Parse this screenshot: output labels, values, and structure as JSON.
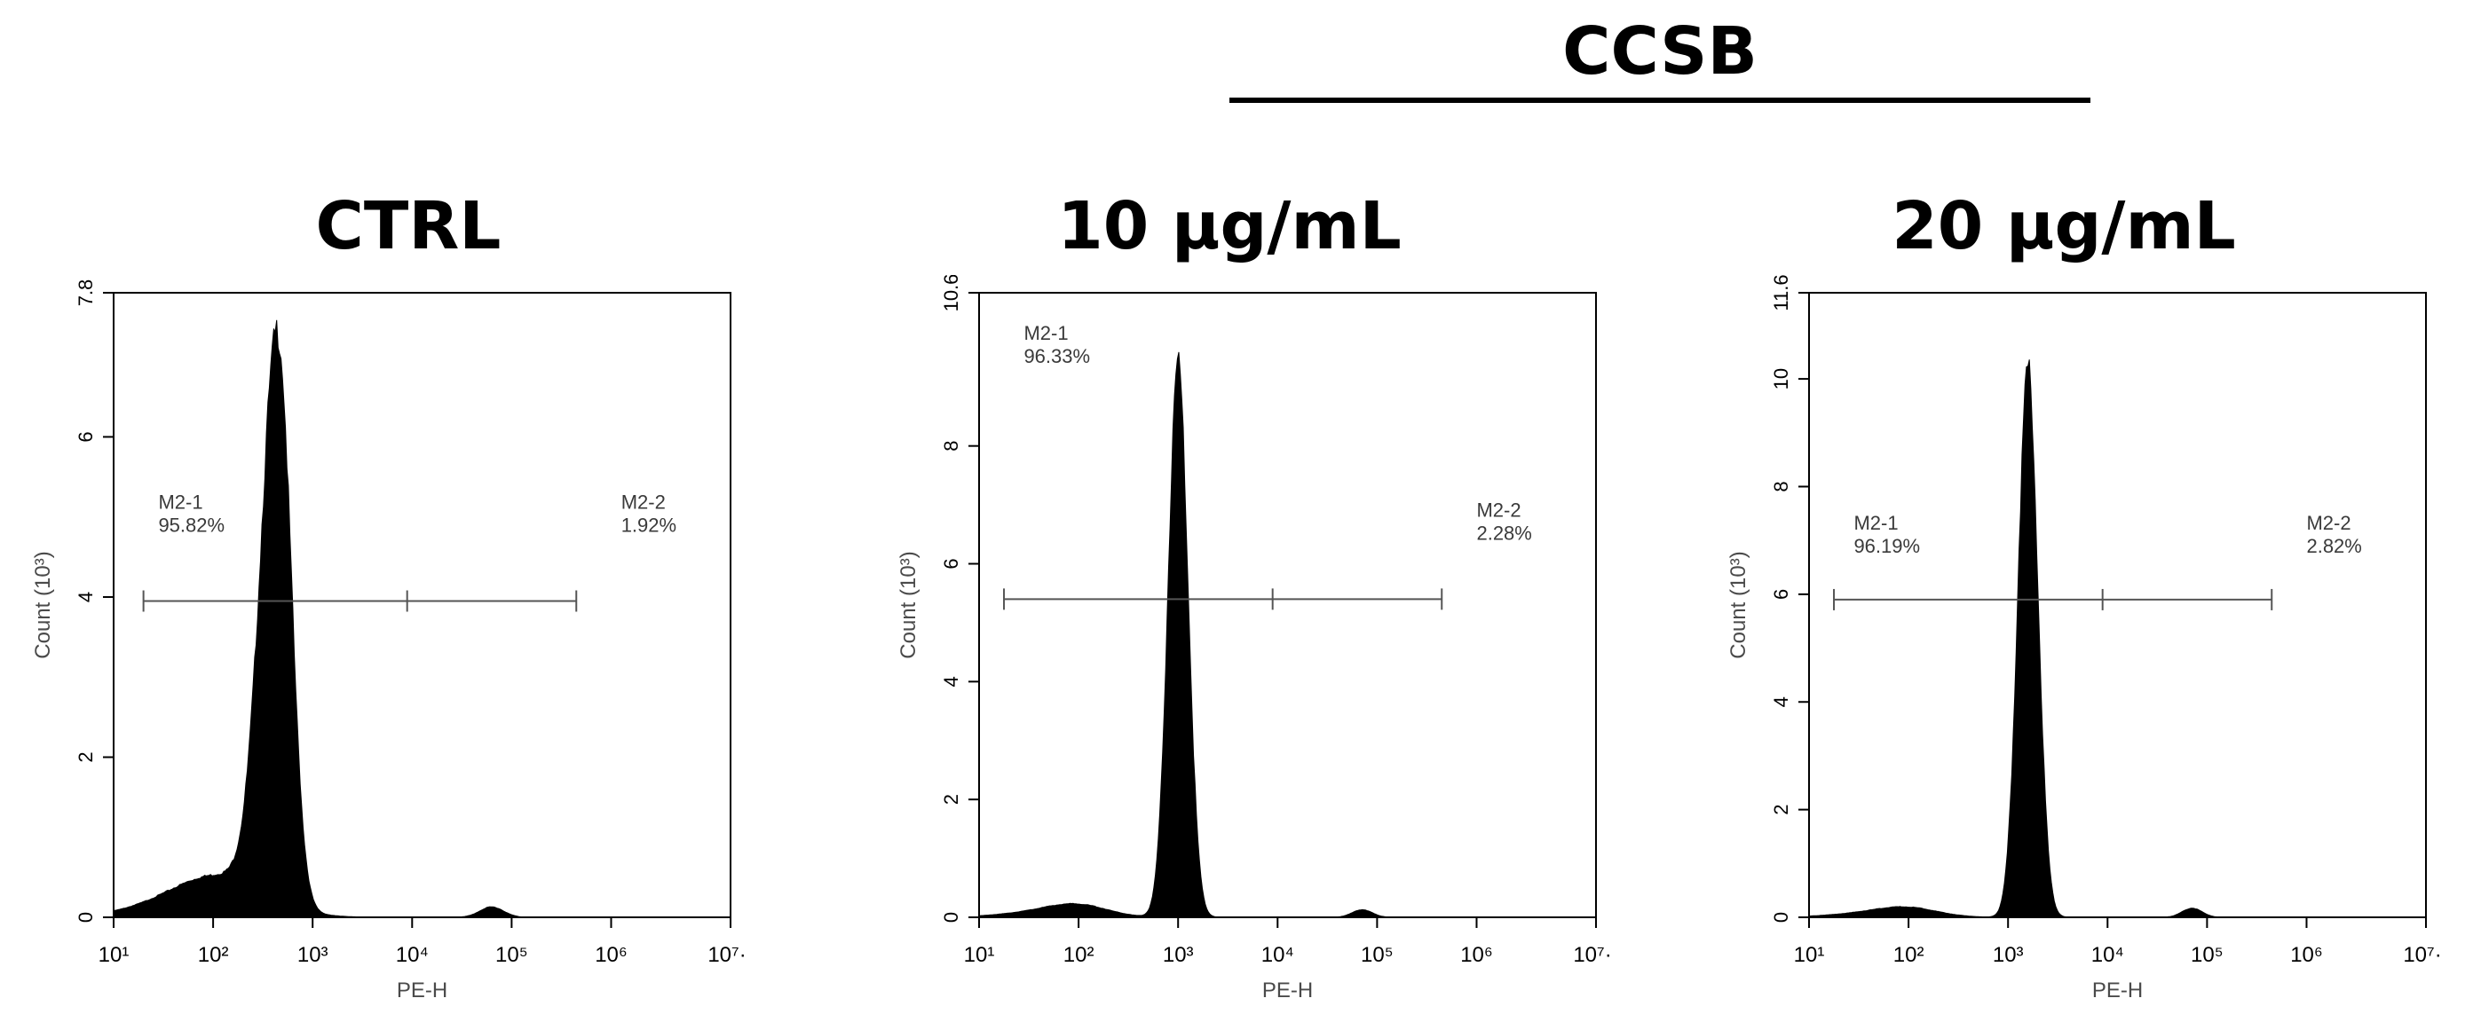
{
  "figure": {
    "group_label": "CCSB"
  },
  "chart_data": [
    {
      "type": "histogram",
      "title": "CTRL",
      "xlabel": "PE-H",
      "ylabel": "Count (10³)",
      "x_scale": "log",
      "xlim_exp": [
        1,
        7.2
      ],
      "x_ticks": [
        {
          "exp": 1,
          "label": "10¹"
        },
        {
          "exp": 2,
          "label": "10²"
        },
        {
          "exp": 3,
          "label": "10³"
        },
        {
          "exp": 4,
          "label": "10⁴"
        },
        {
          "exp": 5,
          "label": "10⁵"
        },
        {
          "exp": 6,
          "label": "10⁶"
        },
        {
          "exp": 7.2,
          "label": "10⁷·²"
        }
      ],
      "ylim": [
        0,
        7.8
      ],
      "y_ticks": [
        0,
        2,
        4,
        6,
        7.8
      ],
      "peak": {
        "center_exp": 2.65,
        "height": 7.1,
        "width_left": 0.17,
        "width_right": 0.13
      },
      "shoulder": {
        "center_exp": 2.1,
        "height": 0.45,
        "width": 0.45
      },
      "baseline_tail": {
        "center_exp": 1.6,
        "height": 0.12,
        "width": 0.5
      },
      "minor_peak": {
        "center_exp": 4.8,
        "height": 0.13,
        "width": 0.12
      },
      "markers": {
        "y": 3.95,
        "start_exp": 1.3,
        "mid_exp": 3.95,
        "end_exp": 5.65
      },
      "gates": [
        {
          "name": "M2-1",
          "percent": "95.82%",
          "label_exp": 1.45,
          "label_y": 5.1
        },
        {
          "name": "M2-2",
          "percent": "1.92%",
          "label_exp": 6.1,
          "label_y": 5.1
        }
      ]
    },
    {
      "type": "histogram",
      "title": "10 µg/mL",
      "xlabel": "PE-H",
      "ylabel": "Count (10³)",
      "x_scale": "log",
      "xlim_exp": [
        1,
        7.2
      ],
      "x_ticks": [
        {
          "exp": 1,
          "label": "10¹"
        },
        {
          "exp": 2,
          "label": "10²"
        },
        {
          "exp": 3,
          "label": "10³"
        },
        {
          "exp": 4,
          "label": "10⁴"
        },
        {
          "exp": 5,
          "label": "10⁵"
        },
        {
          "exp": 6,
          "label": "10⁶"
        },
        {
          "exp": 7.2,
          "label": "10⁷·²"
        }
      ],
      "ylim": [
        0,
        10.6
      ],
      "y_ticks": [
        0,
        2,
        4,
        6,
        8,
        10.6
      ],
      "peak": {
        "center_exp": 3.0,
        "height": 9.4,
        "width_left": 0.1,
        "width_right": 0.1
      },
      "shoulder": {
        "center_exp": 2.0,
        "height": 0.18,
        "width": 0.3
      },
      "baseline_tail": {
        "center_exp": 1.6,
        "height": 0.08,
        "width": 0.4
      },
      "minor_peak": {
        "center_exp": 4.85,
        "height": 0.13,
        "width": 0.1
      },
      "markers": {
        "y": 5.4,
        "start_exp": 1.25,
        "mid_exp": 3.95,
        "end_exp": 5.65
      },
      "gates": [
        {
          "name": "M2-1",
          "percent": "96.33%",
          "label_exp": 1.45,
          "label_y": 9.8
        },
        {
          "name": "M2-2",
          "percent": "2.28%",
          "label_exp": 6.0,
          "label_y": 6.8
        }
      ]
    },
    {
      "type": "histogram",
      "title": "20 µg/mL",
      "xlabel": "PE-H",
      "ylabel": "Count (10³)",
      "x_scale": "log",
      "xlim_exp": [
        1,
        7.2
      ],
      "x_ticks": [
        {
          "exp": 1,
          "label": "10¹"
        },
        {
          "exp": 2,
          "label": "10²"
        },
        {
          "exp": 3,
          "label": "10³"
        },
        {
          "exp": 4,
          "label": "10⁴"
        },
        {
          "exp": 5,
          "label": "10⁵"
        },
        {
          "exp": 6,
          "label": "10⁶"
        },
        {
          "exp": 7.2,
          "label": "10⁷·²"
        }
      ],
      "ylim": [
        0,
        11.6
      ],
      "y_ticks": [
        0,
        2,
        4,
        6,
        8,
        10,
        11.6
      ],
      "peak": {
        "center_exp": 3.2,
        "height": 10.2,
        "width_left": 0.1,
        "width_right": 0.1
      },
      "shoulder": {
        "center_exp": 2.0,
        "height": 0.15,
        "width": 0.3
      },
      "baseline_tail": {
        "center_exp": 1.6,
        "height": 0.07,
        "width": 0.4
      },
      "minor_peak": {
        "center_exp": 4.85,
        "height": 0.17,
        "width": 0.1
      },
      "markers": {
        "y": 5.9,
        "start_exp": 1.25,
        "mid_exp": 3.95,
        "end_exp": 5.65
      },
      "gates": [
        {
          "name": "M2-1",
          "percent": "96.19%",
          "label_exp": 1.45,
          "label_y": 7.2
        },
        {
          "name": "M2-2",
          "percent": "2.82%",
          "label_exp": 6.0,
          "label_y": 7.2
        }
      ]
    }
  ]
}
